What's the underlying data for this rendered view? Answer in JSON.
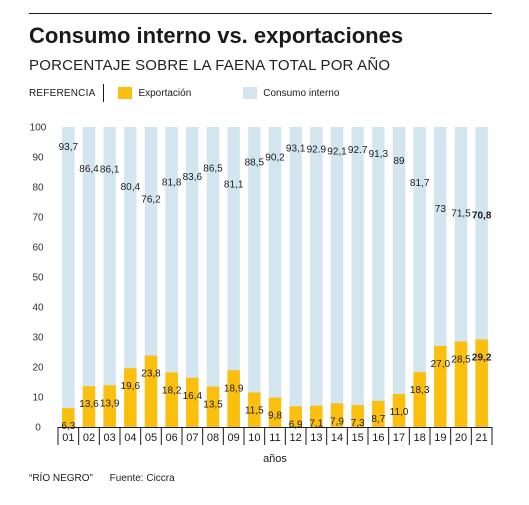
{
  "header": {
    "title": "Consumo interno vs. exportaciones",
    "subtitle": "PORCENTAJE SOBRE LA FAENA TOTAL POR AÑO",
    "legend_label": "REFERENCIA"
  },
  "colors": {
    "export": "#FBBF0E",
    "domestic": "#D3E6F0",
    "text": "#1a1a1a"
  },
  "footer": {
    "credit": "“RÍO NEGRO”",
    "source": "Fuente: Ciccra"
  },
  "chart_data": {
    "type": "bar",
    "stacked": true,
    "categories": [
      "01",
      "02",
      "03",
      "04",
      "05",
      "06",
      "07",
      "08",
      "09",
      "10",
      "11",
      "12",
      "13",
      "14",
      "15",
      "16",
      "17",
      "18",
      "19",
      "20",
      "21"
    ],
    "series": [
      {
        "name": "Exportación",
        "values": [
          6.3,
          13.6,
          13.9,
          19.6,
          23.8,
          18.2,
          16.4,
          13.5,
          18.9,
          11.5,
          9.8,
          6.9,
          7.1,
          7.9,
          7.3,
          8.7,
          11.0,
          18.3,
          27.0,
          28.5,
          29.2
        ],
        "labels": [
          "6,3",
          "13,6",
          "13,9",
          "19,6",
          "23,8",
          "18,2",
          "16,4",
          "13,5",
          "18,9",
          "11,5",
          "9,8",
          "6,9",
          "7,1",
          "7,9",
          "7,3",
          "8,7",
          "11,0",
          "18,3",
          "27,0",
          "28,5",
          "29,2"
        ],
        "color": "#FBBF0E"
      },
      {
        "name": "Consumo interno",
        "values": [
          93.7,
          86.4,
          86.1,
          80.4,
          76.2,
          81.8,
          83.6,
          86.5,
          81.1,
          88.5,
          90.2,
          93.1,
          92.9,
          92.1,
          92.7,
          91.3,
          89,
          81.7,
          73,
          71.5,
          70.8
        ],
        "labels": [
          "93,7",
          "86,4",
          "86,1",
          "80,4",
          "76,2",
          "81,8",
          "83,6",
          "86,5",
          "81,1",
          "88,5",
          "90,2",
          "93,1",
          "92.9",
          "92,1",
          "92.7",
          "91,3",
          "89",
          "81,7",
          "73",
          "71,5",
          "70,8"
        ],
        "color": "#D3E6F0"
      }
    ],
    "xlabel": "años",
    "ylabel": "",
    "ylim": [
      0,
      100
    ],
    "yticks": [
      0,
      10,
      20,
      30,
      40,
      50,
      60,
      70,
      80,
      90,
      100
    ],
    "grid": false,
    "legend_position": "top-left"
  }
}
